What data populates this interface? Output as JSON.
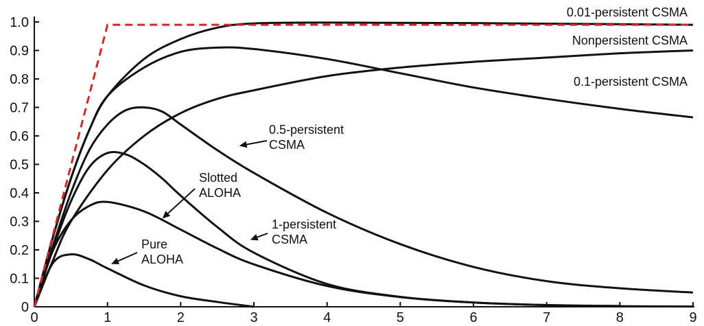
{
  "chart_data": {
    "type": "line",
    "xlim": [
      0,
      9
    ],
    "ylim": [
      0,
      1.0
    ],
    "xticks": [
      "0",
      "1",
      "2",
      "3",
      "4",
      "5",
      "6",
      "7",
      "8",
      "9"
    ],
    "yticks": [
      "0",
      "0.1",
      "0.2",
      "0.3",
      "0.4",
      "0.5",
      "0.6",
      "0.7",
      "0.8",
      "0.9",
      "1.0"
    ],
    "grid": false,
    "series": [
      {
        "name": "0.01-persistent CSMA",
        "color": "#111111",
        "x": [
          0,
          0.25,
          0.5,
          0.75,
          1,
          1.5,
          2,
          2.5,
          3,
          4,
          6,
          9
        ],
        "y": [
          0,
          0.24,
          0.45,
          0.62,
          0.74,
          0.87,
          0.94,
          0.98,
          0.995,
          0.998,
          0.996,
          0.99
        ]
      },
      {
        "name": "Nonpersistent CSMA",
        "color": "#111111",
        "x": [
          0,
          0.25,
          0.5,
          0.75,
          1,
          1.5,
          2,
          2.5,
          3,
          4,
          5,
          6,
          7,
          8,
          9
        ],
        "y": [
          0,
          0.24,
          0.45,
          0.62,
          0.74,
          0.84,
          0.895,
          0.91,
          0.905,
          0.87,
          0.82,
          0.77,
          0.73,
          0.695,
          0.665
        ]
      },
      {
        "name": "0.1-persistent CSMA",
        "color": "#111111",
        "x": [
          0,
          0.25,
          0.5,
          1,
          1.5,
          2,
          2.5,
          3,
          4,
          5,
          6,
          7,
          8,
          9
        ],
        "y": [
          0,
          0.16,
          0.3,
          0.48,
          0.6,
          0.68,
          0.73,
          0.76,
          0.81,
          0.84,
          0.86,
          0.875,
          0.89,
          0.9
        ]
      },
      {
        "name": "0.5-persistent CSMA",
        "color": "#111111",
        "x": [
          0,
          0.25,
          0.5,
          0.75,
          1,
          1.25,
          1.5,
          1.75,
          2,
          2.5,
          3,
          4,
          5,
          6,
          7,
          8,
          9
        ],
        "y": [
          0,
          0.21,
          0.4,
          0.55,
          0.64,
          0.69,
          0.7,
          0.685,
          0.64,
          0.55,
          0.47,
          0.33,
          0.22,
          0.14,
          0.09,
          0.065,
          0.05
        ]
      },
      {
        "name": "1-persistent CSMA",
        "color": "#111111",
        "x": [
          0,
          0.25,
          0.5,
          0.75,
          1,
          1.25,
          1.5,
          1.75,
          2,
          2.5,
          3,
          4,
          5,
          6,
          7,
          8,
          9
        ],
        "y": [
          0,
          0.2,
          0.37,
          0.49,
          0.54,
          0.535,
          0.5,
          0.45,
          0.39,
          0.28,
          0.19,
          0.08,
          0.035,
          0.015,
          0.006,
          0.002,
          0.001
        ]
      },
      {
        "name": "Slotted ALOHA",
        "color": "#111111",
        "x": [
          0,
          0.25,
          0.5,
          0.75,
          1,
          1.5,
          2,
          2.5,
          3,
          4,
          5,
          6,
          7,
          8
        ],
        "y": [
          0,
          0.195,
          0.303,
          0.354,
          0.368,
          0.335,
          0.271,
          0.205,
          0.149,
          0.073,
          0.034,
          0.015,
          0.006,
          0.003
        ]
      },
      {
        "name": "Pure ALOHA",
        "color": "#111111",
        "x": [
          0,
          0.25,
          0.5,
          0.75,
          1,
          1.5,
          2,
          2.5,
          3
        ],
        "y": [
          0,
          0.152,
          0.184,
          0.167,
          0.135,
          0.075,
          0.037,
          0.017,
          0.0
        ]
      },
      {
        "name": "",
        "color": "#cc2a2a",
        "style": "dashed",
        "x": [
          0,
          1,
          9
        ],
        "y": [
          0,
          0.99,
          0.99
        ]
      }
    ],
    "annotations": [
      {
        "text": [
          "0.01-persistent CSMA"
        ],
        "series": 0
      },
      {
        "text": [
          "Nonpersistent CSMA"
        ],
        "series": 1
      },
      {
        "text": [
          "0.1-persistent CSMA"
        ],
        "series": 2
      },
      {
        "text": [
          "0.5-persistent",
          "CSMA"
        ],
        "series": 3,
        "arrow_to": [
          2.8,
          0.565
        ]
      },
      {
        "text": [
          "1-persistent",
          "CSMA"
        ],
        "series": 4,
        "arrow_to": [
          2.95,
          0.235
        ]
      },
      {
        "text": [
          "Slotted",
          "ALOHA"
        ],
        "series": 5,
        "arrow_to": [
          1.75,
          0.31
        ]
      },
      {
        "text": [
          "Pure",
          "ALOHA"
        ],
        "series": 6,
        "arrow_to": [
          1.05,
          0.15
        ]
      }
    ]
  }
}
